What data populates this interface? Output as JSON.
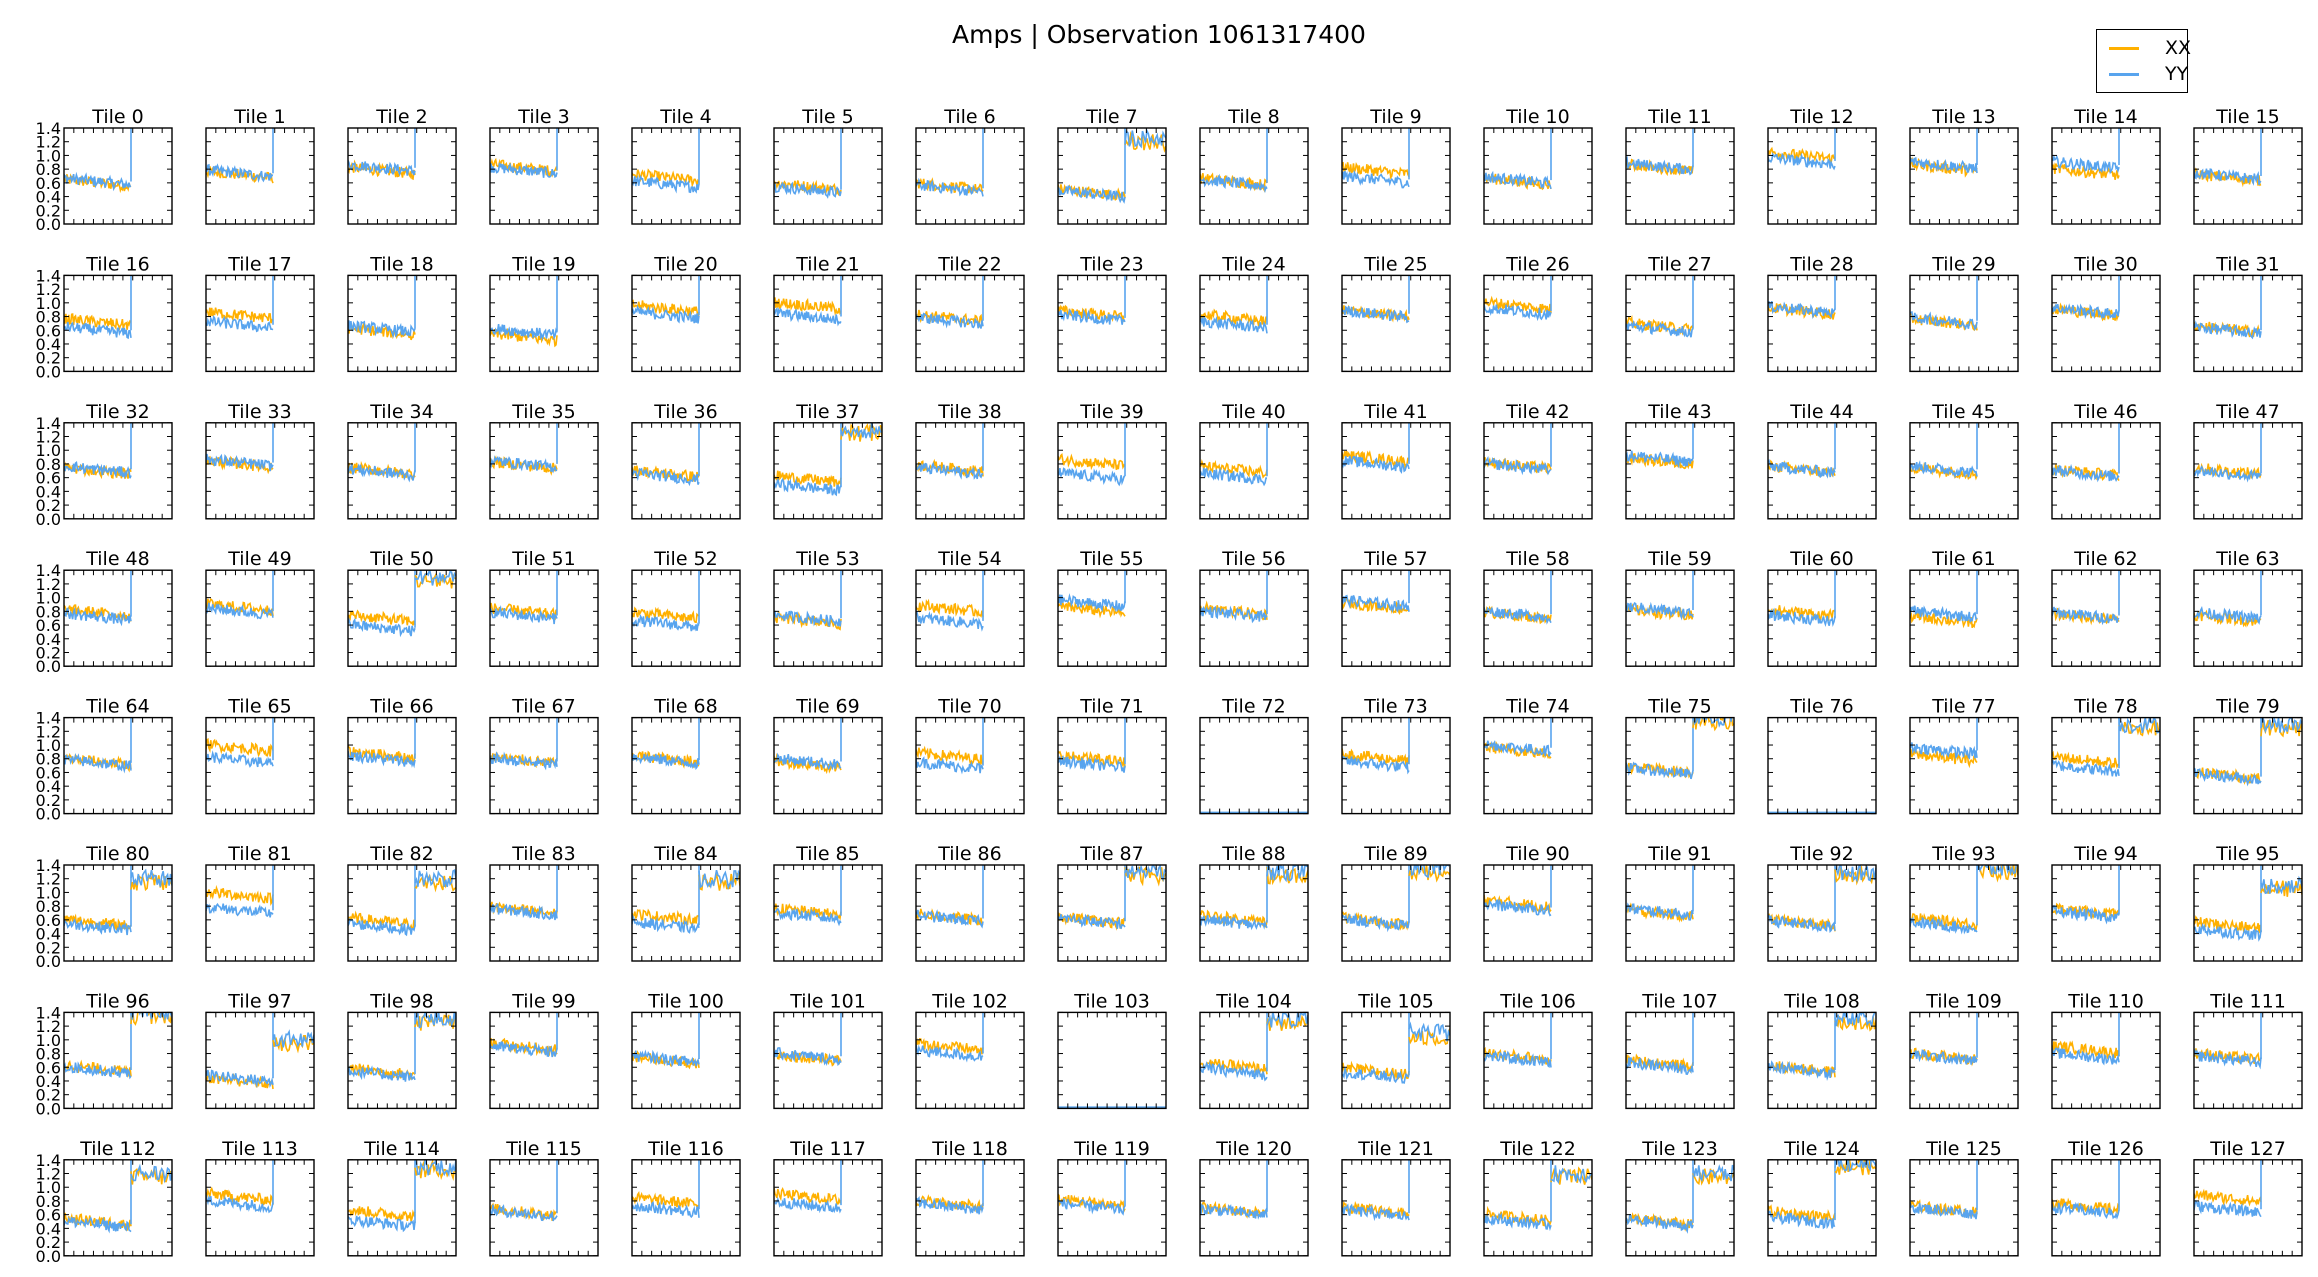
{
  "figure": {
    "title": "Amps | Observation 1061317400"
  },
  "legend": [
    {
      "label": "XX",
      "color": "#FFB000"
    },
    {
      "label": "YY",
      "color": "#58A4EE"
    }
  ],
  "chart_data": {
    "type": "line",
    "title": "Amps | Observation 1061317400",
    "layout": "small multiples, 8 rows x 16 columns",
    "ylim": [
      0.0,
      1.4
    ],
    "yticks": [
      "0.0",
      "0.2",
      "0.4",
      "0.6",
      "0.8",
      "1.0",
      "1.2",
      "1.4"
    ],
    "x_tick_labels_shown": false,
    "series_names": [
      "XX",
      "YY"
    ],
    "panels_note": "Per tile: XX and YY amplitude traces over the first ~60% of the x range (approximate mean levels, x in unlabelled 0-1 fraction of the panel's range, values read off the plots). empty = flat line at 0.0; jump = YY trace jumps to ~1.4 at that x fraction.",
    "panels": [
      {
        "title": "Tile 0",
        "xx": 0.6,
        "yy": 0.62,
        "jump": 0.62
      },
      {
        "title": "Tile 1",
        "xx": 0.72,
        "yy": 0.74,
        "jump": 0.62
      },
      {
        "title": "Tile 2",
        "xx": 0.78,
        "yy": 0.82,
        "jump": 0.62
      },
      {
        "title": "Tile 3",
        "xx": 0.82,
        "yy": 0.78,
        "jump": 0.62
      },
      {
        "title": "Tile 4",
        "xx": 0.68,
        "yy": 0.58,
        "jump": 0.62
      },
      {
        "title": "Tile 5",
        "xx": 0.55,
        "yy": 0.5,
        "jump": 0.62
      },
      {
        "title": "Tile 6",
        "xx": 0.55,
        "yy": 0.52,
        "jump": 0.62
      },
      {
        "title": "Tile 7",
        "xx": 0.46,
        "yy": 0.44,
        "jump": 0.62,
        "after": 1.25
      },
      {
        "title": "Tile 8",
        "xx": 0.62,
        "yy": 0.6,
        "jump": 0.62
      },
      {
        "title": "Tile 9",
        "xx": 0.78,
        "yy": 0.65,
        "jump": 0.62
      },
      {
        "title": "Tile 10",
        "xx": 0.62,
        "yy": 0.64,
        "jump": 0.62
      },
      {
        "title": "Tile 11",
        "xx": 0.82,
        "yy": 0.84,
        "jump": 0.62
      },
      {
        "title": "Tile 12",
        "xx": 1.0,
        "yy": 0.92,
        "jump": 0.62
      },
      {
        "title": "Tile 13",
        "xx": 0.82,
        "yy": 0.86,
        "jump": 0.62
      },
      {
        "title": "Tile 14",
        "xx": 0.76,
        "yy": 0.86,
        "jump": 0.62
      },
      {
        "title": "Tile 15",
        "xx": 0.68,
        "yy": 0.7,
        "jump": 0.62
      },
      {
        "title": "Tile 16",
        "xx": 0.72,
        "yy": 0.6,
        "jump": 0.62
      },
      {
        "title": "Tile 17",
        "xx": 0.82,
        "yy": 0.68,
        "jump": 0.62
      },
      {
        "title": "Tile 18",
        "xx": 0.58,
        "yy": 0.62,
        "jump": 0.62
      },
      {
        "title": "Tile 19",
        "xx": 0.5,
        "yy": 0.58,
        "jump": 0.62
      },
      {
        "title": "Tile 20",
        "xx": 0.92,
        "yy": 0.82,
        "jump": 0.62
      },
      {
        "title": "Tile 21",
        "xx": 0.96,
        "yy": 0.8,
        "jump": 0.62
      },
      {
        "title": "Tile 22",
        "xx": 0.78,
        "yy": 0.74,
        "jump": 0.62
      },
      {
        "title": "Tile 23",
        "xx": 0.84,
        "yy": 0.78,
        "jump": 0.62
      },
      {
        "title": "Tile 24",
        "xx": 0.78,
        "yy": 0.68,
        "jump": 0.62
      },
      {
        "title": "Tile 25",
        "xx": 0.84,
        "yy": 0.84,
        "jump": 0.62
      },
      {
        "title": "Tile 26",
        "xx": 0.96,
        "yy": 0.88,
        "jump": 0.62
      },
      {
        "title": "Tile 27",
        "xx": 0.66,
        "yy": 0.62,
        "jump": 0.62
      },
      {
        "title": "Tile 28",
        "xx": 0.88,
        "yy": 0.9,
        "jump": 0.62
      },
      {
        "title": "Tile 29",
        "xx": 0.72,
        "yy": 0.74,
        "jump": 0.62
      },
      {
        "title": "Tile 30",
        "xx": 0.86,
        "yy": 0.88,
        "jump": 0.62
      },
      {
        "title": "Tile 31",
        "xx": 0.62,
        "yy": 0.6,
        "jump": 0.62
      },
      {
        "title": "Tile 32",
        "xx": 0.7,
        "yy": 0.72,
        "jump": 0.62
      },
      {
        "title": "Tile 33",
        "xx": 0.8,
        "yy": 0.82,
        "jump": 0.62
      },
      {
        "title": "Tile 34",
        "xx": 0.7,
        "yy": 0.68,
        "jump": 0.62
      },
      {
        "title": "Tile 35",
        "xx": 0.78,
        "yy": 0.8,
        "jump": 0.62
      },
      {
        "title": "Tile 36",
        "xx": 0.66,
        "yy": 0.62,
        "jump": 0.62
      },
      {
        "title": "Tile 37",
        "xx": 0.58,
        "yy": 0.46,
        "jump": 0.62,
        "after": 1.3
      },
      {
        "title": "Tile 38",
        "xx": 0.74,
        "yy": 0.7,
        "jump": 0.62
      },
      {
        "title": "Tile 39",
        "xx": 0.82,
        "yy": 0.62,
        "jump": 0.62
      },
      {
        "title": "Tile 40",
        "xx": 0.72,
        "yy": 0.62,
        "jump": 0.62
      },
      {
        "title": "Tile 41",
        "xx": 0.88,
        "yy": 0.8,
        "jump": 0.62
      },
      {
        "title": "Tile 42",
        "xx": 0.78,
        "yy": 0.76,
        "jump": 0.62
      },
      {
        "title": "Tile 43",
        "xx": 0.84,
        "yy": 0.88,
        "jump": 0.62
      },
      {
        "title": "Tile 44",
        "xx": 0.72,
        "yy": 0.72,
        "jump": 0.62
      },
      {
        "title": "Tile 45",
        "xx": 0.7,
        "yy": 0.72,
        "jump": 0.62
      },
      {
        "title": "Tile 46",
        "xx": 0.68,
        "yy": 0.66,
        "jump": 0.62
      },
      {
        "title": "Tile 47",
        "xx": 0.7,
        "yy": 0.66,
        "jump": 0.62
      },
      {
        "title": "Tile 48",
        "xx": 0.78,
        "yy": 0.72,
        "jump": 0.62
      },
      {
        "title": "Tile 49",
        "xx": 0.86,
        "yy": 0.8,
        "jump": 0.62
      },
      {
        "title": "Tile 50",
        "xx": 0.7,
        "yy": 0.56,
        "jump": 0.62,
        "after": 1.3
      },
      {
        "title": "Tile 51",
        "xx": 0.8,
        "yy": 0.74,
        "jump": 0.62
      },
      {
        "title": "Tile 52",
        "xx": 0.74,
        "yy": 0.62,
        "jump": 0.62
      },
      {
        "title": "Tile 53",
        "xx": 0.66,
        "yy": 0.7,
        "jump": 0.62
      },
      {
        "title": "Tile 54",
        "xx": 0.84,
        "yy": 0.66,
        "jump": 0.62
      },
      {
        "title": "Tile 55",
        "xx": 0.82,
        "yy": 0.92,
        "jump": 0.62
      },
      {
        "title": "Tile 56",
        "xx": 0.8,
        "yy": 0.76,
        "jump": 0.62
      },
      {
        "title": "Tile 57",
        "xx": 0.88,
        "yy": 0.92,
        "jump": 0.62
      },
      {
        "title": "Tile 58",
        "xx": 0.74,
        "yy": 0.76,
        "jump": 0.62
      },
      {
        "title": "Tile 59",
        "xx": 0.78,
        "yy": 0.82,
        "jump": 0.62
      },
      {
        "title": "Tile 60",
        "xx": 0.78,
        "yy": 0.7,
        "jump": 0.62
      },
      {
        "title": "Tile 61",
        "xx": 0.68,
        "yy": 0.76,
        "jump": 0.62
      },
      {
        "title": "Tile 62",
        "xx": 0.72,
        "yy": 0.74,
        "jump": 0.62
      },
      {
        "title": "Tile 63",
        "xx": 0.7,
        "yy": 0.74,
        "jump": 0.62
      },
      {
        "title": "Tile 64",
        "xx": 0.76,
        "yy": 0.74,
        "jump": 0.62
      },
      {
        "title": "Tile 65",
        "xx": 0.96,
        "yy": 0.78,
        "jump": 0.62
      },
      {
        "title": "Tile 66",
        "xx": 0.86,
        "yy": 0.8,
        "jump": 0.62
      },
      {
        "title": "Tile 67",
        "xx": 0.78,
        "yy": 0.76,
        "jump": 0.62
      },
      {
        "title": "Tile 68",
        "xx": 0.8,
        "yy": 0.78,
        "jump": 0.62
      },
      {
        "title": "Tile 69",
        "xx": 0.72,
        "yy": 0.76,
        "jump": 0.62
      },
      {
        "title": "Tile 70",
        "xx": 0.84,
        "yy": 0.7,
        "jump": 0.62
      },
      {
        "title": "Tile 71",
        "xx": 0.8,
        "yy": 0.72,
        "jump": 0.62
      },
      {
        "title": "Tile 72",
        "empty": true
      },
      {
        "title": "Tile 73",
        "xx": 0.82,
        "yy": 0.72,
        "jump": 0.62
      },
      {
        "title": "Tile 74",
        "xx": 0.92,
        "yy": 0.96,
        "jump": 0.62
      },
      {
        "title": "Tile 75",
        "xx": 0.64,
        "yy": 0.62,
        "jump": 0.62,
        "after": 1.4
      },
      {
        "title": "Tile 76",
        "empty": true
      },
      {
        "title": "Tile 77",
        "xx": 0.82,
        "yy": 0.92,
        "jump": 0.62
      },
      {
        "title": "Tile 78",
        "xx": 0.78,
        "yy": 0.66,
        "jump": 0.62,
        "after": 1.3
      },
      {
        "title": "Tile 79",
        "xx": 0.56,
        "yy": 0.54,
        "jump": 0.62,
        "after": 1.3
      },
      {
        "title": "Tile 80",
        "xx": 0.56,
        "yy": 0.5,
        "jump": 0.62,
        "after": 1.2
      },
      {
        "title": "Tile 81",
        "xx": 0.96,
        "yy": 0.74,
        "jump": 0.62
      },
      {
        "title": "Tile 82",
        "xx": 0.58,
        "yy": 0.5,
        "jump": 0.62,
        "after": 1.2
      },
      {
        "title": "Tile 83",
        "xx": 0.74,
        "yy": 0.72,
        "jump": 0.62
      },
      {
        "title": "Tile 84",
        "xx": 0.64,
        "yy": 0.52,
        "jump": 0.62,
        "after": 1.2
      },
      {
        "title": "Tile 85",
        "xx": 0.72,
        "yy": 0.66,
        "jump": 0.62
      },
      {
        "title": "Tile 86",
        "xx": 0.64,
        "yy": 0.62,
        "jump": 0.62
      },
      {
        "title": "Tile 87",
        "xx": 0.6,
        "yy": 0.58,
        "jump": 0.62,
        "after": 1.3
      },
      {
        "title": "Tile 88",
        "xx": 0.62,
        "yy": 0.56,
        "jump": 0.62,
        "after": 1.3
      },
      {
        "title": "Tile 89",
        "xx": 0.58,
        "yy": 0.56,
        "jump": 0.62,
        "after": 1.35
      },
      {
        "title": "Tile 90",
        "xx": 0.84,
        "yy": 0.78,
        "jump": 0.62
      },
      {
        "title": "Tile 91",
        "xx": 0.7,
        "yy": 0.72,
        "jump": 0.62
      },
      {
        "title": "Tile 92",
        "xx": 0.56,
        "yy": 0.54,
        "jump": 0.62,
        "after": 1.3
      },
      {
        "title": "Tile 93",
        "xx": 0.58,
        "yy": 0.52,
        "jump": 0.62,
        "after": 1.35
      },
      {
        "title": "Tile 94",
        "xx": 0.72,
        "yy": 0.68,
        "jump": 0.62
      },
      {
        "title": "Tile 95",
        "xx": 0.52,
        "yy": 0.42,
        "jump": 0.62,
        "after": 1.1
      },
      {
        "title": "Tile 96",
        "xx": 0.58,
        "yy": 0.56,
        "jump": 0.62,
        "after": 1.4
      },
      {
        "title": "Tile 97",
        "xx": 0.4,
        "yy": 0.44,
        "jump": 0.62,
        "after": 1.0
      },
      {
        "title": "Tile 98",
        "xx": 0.54,
        "yy": 0.5,
        "jump": 0.62,
        "after": 1.3
      },
      {
        "title": "Tile 99",
        "xx": 0.9,
        "yy": 0.86,
        "jump": 0.62
      },
      {
        "title": "Tile 100",
        "xx": 0.7,
        "yy": 0.72,
        "jump": 0.62
      },
      {
        "title": "Tile 101",
        "xx": 0.74,
        "yy": 0.76,
        "jump": 0.62
      },
      {
        "title": "Tile 102",
        "xx": 0.9,
        "yy": 0.8,
        "jump": 0.62
      },
      {
        "title": "Tile 103",
        "empty": true
      },
      {
        "title": "Tile 104",
        "xx": 0.62,
        "yy": 0.54,
        "jump": 0.62,
        "after": 1.3
      },
      {
        "title": "Tile 105",
        "xx": 0.54,
        "yy": 0.48,
        "jump": 0.62,
        "after": 1.1
      },
      {
        "title": "Tile 106",
        "xx": 0.76,
        "yy": 0.72,
        "jump": 0.62
      },
      {
        "title": "Tile 107",
        "xx": 0.66,
        "yy": 0.62,
        "jump": 0.62
      },
      {
        "title": "Tile 108",
        "xx": 0.58,
        "yy": 0.56,
        "jump": 0.62,
        "after": 1.3
      },
      {
        "title": "Tile 109",
        "xx": 0.76,
        "yy": 0.74,
        "jump": 0.62
      },
      {
        "title": "Tile 110",
        "xx": 0.86,
        "yy": 0.76,
        "jump": 0.62
      },
      {
        "title": "Tile 111",
        "xx": 0.76,
        "yy": 0.72,
        "jump": 0.62
      },
      {
        "title": "Tile 112",
        "xx": 0.5,
        "yy": 0.46,
        "jump": 0.62,
        "after": 1.2
      },
      {
        "title": "Tile 113",
        "xx": 0.86,
        "yy": 0.76,
        "jump": 0.62
      },
      {
        "title": "Tile 114",
        "xx": 0.62,
        "yy": 0.48,
        "jump": 0.62,
        "after": 1.3
      },
      {
        "title": "Tile 115",
        "xx": 0.64,
        "yy": 0.62,
        "jump": 0.62
      },
      {
        "title": "Tile 116",
        "xx": 0.8,
        "yy": 0.68,
        "jump": 0.62
      },
      {
        "title": "Tile 117",
        "xx": 0.86,
        "yy": 0.74,
        "jump": 0.62
      },
      {
        "title": "Tile 118",
        "xx": 0.76,
        "yy": 0.72,
        "jump": 0.62
      },
      {
        "title": "Tile 119",
        "xx": 0.78,
        "yy": 0.72,
        "jump": 0.62
      },
      {
        "title": "Tile 120",
        "xx": 0.66,
        "yy": 0.64,
        "jump": 0.62
      },
      {
        "title": "Tile 121",
        "xx": 0.66,
        "yy": 0.62,
        "jump": 0.62
      },
      {
        "title": "Tile 122",
        "xx": 0.56,
        "yy": 0.5,
        "jump": 0.62,
        "after": 1.2
      },
      {
        "title": "Tile 123",
        "xx": 0.5,
        "yy": 0.48,
        "jump": 0.62,
        "after": 1.2
      },
      {
        "title": "Tile 124",
        "xx": 0.6,
        "yy": 0.52,
        "jump": 0.62,
        "after": 1.35
      },
      {
        "title": "Tile 125",
        "xx": 0.68,
        "yy": 0.66,
        "jump": 0.62
      },
      {
        "title": "Tile 126",
        "xx": 0.72,
        "yy": 0.66,
        "jump": 0.62
      },
      {
        "title": "Tile 127",
        "xx": 0.84,
        "yy": 0.68,
        "jump": 0.62
      }
    ]
  }
}
